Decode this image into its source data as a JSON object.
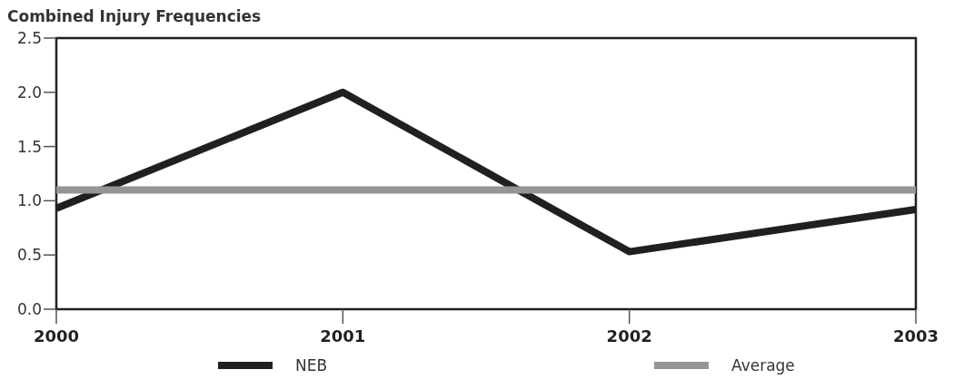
{
  "chart_data": {
    "type": "line",
    "title": "Combined Injury Frequencies",
    "x": [
      2000,
      2001,
      2002,
      2003
    ],
    "series": [
      {
        "name": "NEB",
        "color": "#231f20",
        "values": [
          0.93,
          2.0,
          0.53,
          0.92
        ]
      },
      {
        "name": "Average",
        "color": "#939598",
        "values": [
          1.1,
          1.1,
          1.1,
          1.1
        ]
      }
    ],
    "xlim": [
      2000,
      2003
    ],
    "xticks": [
      2000,
      2001,
      2002,
      2003
    ],
    "ylim": [
      0,
      2.5
    ],
    "yticks": [
      {
        "value": 0,
        "label": "0.0"
      },
      {
        "value": 0.5,
        "label": "0.5"
      },
      {
        "value": 1,
        "label": "1.0"
      },
      {
        "value": 1.5,
        "label": "1.5"
      },
      {
        "value": 2,
        "label": "2.0"
      },
      {
        "value": 2.5,
        "label": "2.5"
      }
    ],
    "legend": "bottom",
    "marker": "none",
    "line_style": "solid",
    "grid": false
  }
}
